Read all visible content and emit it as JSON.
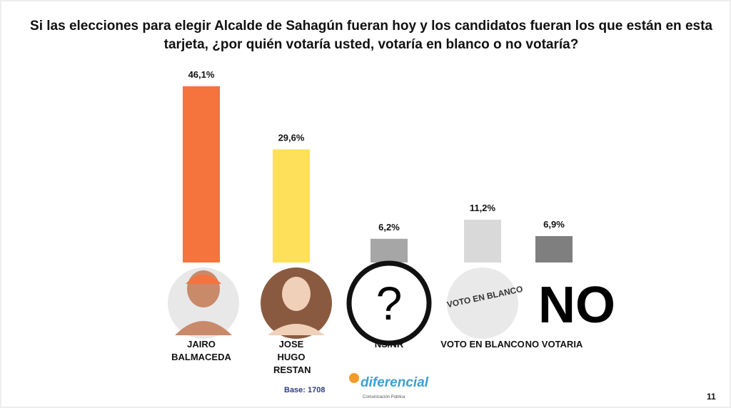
{
  "chart_data": {
    "type": "bar",
    "title": "Si las elecciones para elegir Alcalde de Sahagún fueran hoy  y los candidatos fueran los que están en esta tarjeta, ¿por quién votaría usted, votaría en blanco o no votaría?",
    "categories": [
      "JAIRO BALMACEDA",
      "JOSE HUGO RESTAN",
      "NS/NR",
      "VOTO EN BLANCO",
      "NO VOTARIA"
    ],
    "values": [
      46.1,
      29.6,
      6.2,
      11.2,
      6.9
    ],
    "value_labels": [
      "46,1%",
      "29,6%",
      "6,2%",
      "11,2%",
      "6,9%"
    ],
    "colors": [
      "#f5733d",
      "#ffe05a",
      "#a6a6a6",
      "#d9d9d9",
      "#7f7f7f"
    ],
    "ylim": [
      0,
      50
    ]
  },
  "footer": {
    "base": "Base: 1708",
    "page_number": "11",
    "logo": "diferencial",
    "logo_subtitle": "Comunicación Pública"
  },
  "icons": {
    "blank_vote": "VOTO EN BLANCO",
    "no_vote": "NO",
    "question": "?"
  }
}
